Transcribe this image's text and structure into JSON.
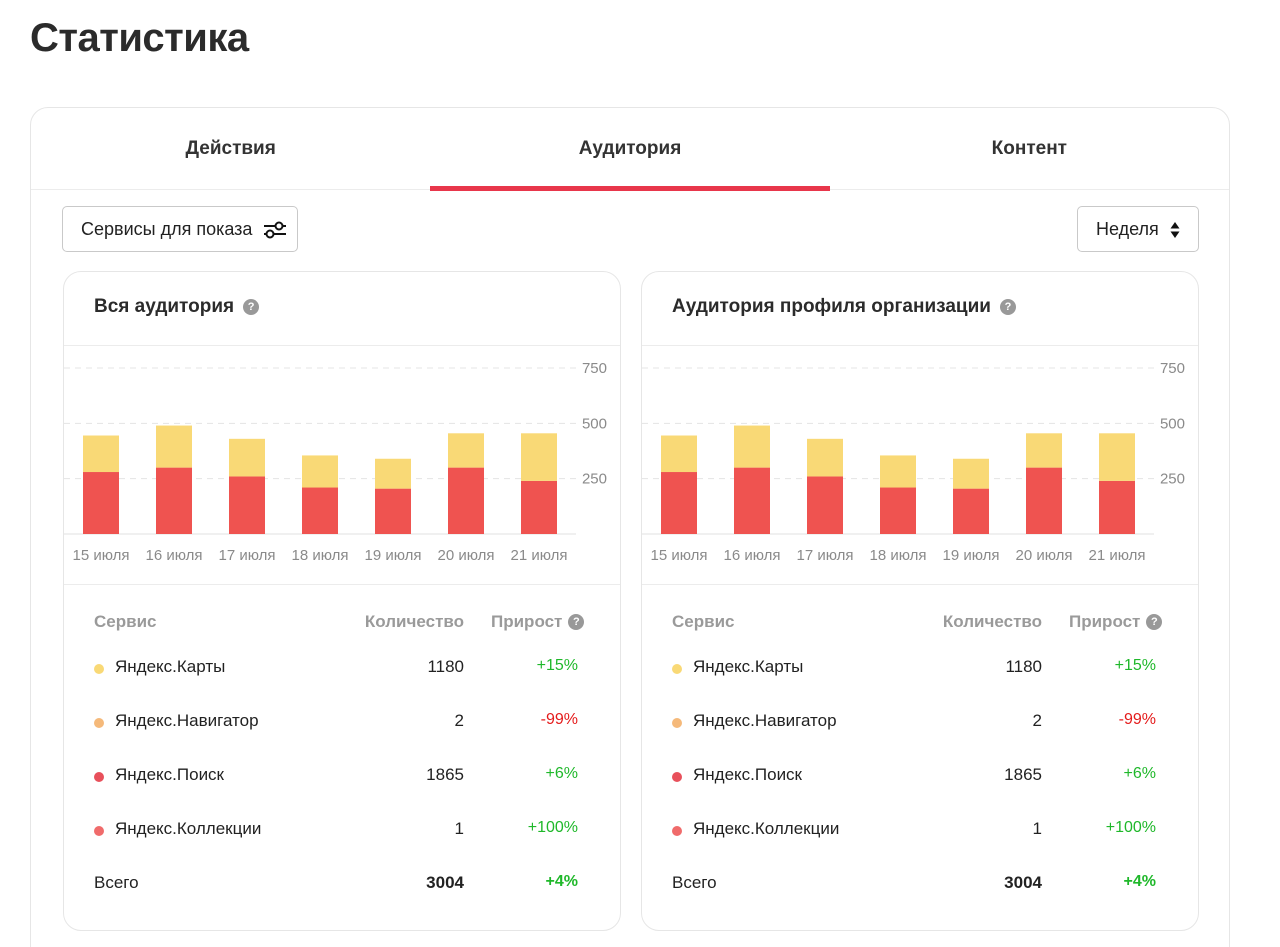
{
  "page": {
    "title": "Статистика"
  },
  "tabs": [
    {
      "label": "Действия",
      "active": false
    },
    {
      "label": "Аудитория",
      "active": true
    },
    {
      "label": "Контент",
      "active": false
    }
  ],
  "filters": {
    "services_label": "Сервисы для показа",
    "services_icon": "sliders-icon",
    "period_label": "Неделя",
    "period_icon": "sort-arrows-icon"
  },
  "colors": {
    "accent": "#e8364b",
    "bar_top": "#f9d976",
    "bar_bottom": "#ef5350",
    "positive": "#1fb82a",
    "negative": "#e41b1b"
  },
  "cards": [
    {
      "title": "Вся аудитория",
      "table": {
        "headers": {
          "service": "Сервис",
          "count": "Количество",
          "growth": "Прирост"
        },
        "rows": [
          {
            "name": "Яндекс.Карты",
            "count": "1180",
            "growth": "+15%",
            "trend": "pos",
            "dot": "#f9d976"
          },
          {
            "name": "Яндекс.Навигатор",
            "count": "2",
            "growth": "-99%",
            "trend": "neg",
            "dot": "#f5b97a"
          },
          {
            "name": "Яндекс.Поиск",
            "count": "1865",
            "growth": "+6%",
            "trend": "pos",
            "dot": "#e8505b"
          },
          {
            "name": "Яндекс.Коллекции",
            "count": "1",
            "growth": "+100%",
            "trend": "pos",
            "dot": "#f06b6b"
          }
        ],
        "total": {
          "name": "Всего",
          "count": "3004",
          "growth": "+4%"
        }
      }
    },
    {
      "title": "Аудитория профиля организации",
      "table": {
        "headers": {
          "service": "Сервис",
          "count": "Количество",
          "growth": "Прирост"
        },
        "rows": [
          {
            "name": "Яндекс.Карты",
            "count": "1180",
            "growth": "+15%",
            "trend": "pos",
            "dot": "#f9d976"
          },
          {
            "name": "Яндекс.Навигатор",
            "count": "2",
            "growth": "-99%",
            "trend": "neg",
            "dot": "#f5b97a"
          },
          {
            "name": "Яндекс.Поиск",
            "count": "1865",
            "growth": "+6%",
            "trend": "pos",
            "dot": "#e8505b"
          },
          {
            "name": "Яндекс.Коллекции",
            "count": "1",
            "growth": "+100%",
            "trend": "pos",
            "dot": "#f06b6b"
          }
        ],
        "total": {
          "name": "Всего",
          "count": "3004",
          "growth": "+4%"
        }
      }
    }
  ],
  "chart_data": [
    {
      "type": "bar",
      "stacked": true,
      "categories": [
        "15 июля",
        "16 июля",
        "17 июля",
        "18 июля",
        "19 июля",
        "20 июля",
        "21 июля"
      ],
      "series": [
        {
          "values": [
            280,
            300,
            260,
            210,
            205,
            300,
            240
          ],
          "color": "#ef5350"
        },
        {
          "values": [
            165,
            190,
            170,
            145,
            135,
            155,
            215
          ],
          "color": "#f9d976"
        }
      ],
      "y_ticks": [
        "250",
        "500",
        "750"
      ],
      "ylim": [
        0,
        750
      ],
      "grid": true
    },
    {
      "type": "bar",
      "stacked": true,
      "categories": [
        "15 июля",
        "16 июля",
        "17 июля",
        "18 июля",
        "19 июля",
        "20 июля",
        "21 июля"
      ],
      "series": [
        {
          "values": [
            280,
            300,
            260,
            210,
            205,
            300,
            240
          ],
          "color": "#ef5350"
        },
        {
          "values": [
            165,
            190,
            170,
            145,
            135,
            155,
            215
          ],
          "color": "#f9d976"
        }
      ],
      "y_ticks": [
        "250",
        "500",
        "750"
      ],
      "ylim": [
        0,
        750
      ],
      "grid": true
    }
  ]
}
